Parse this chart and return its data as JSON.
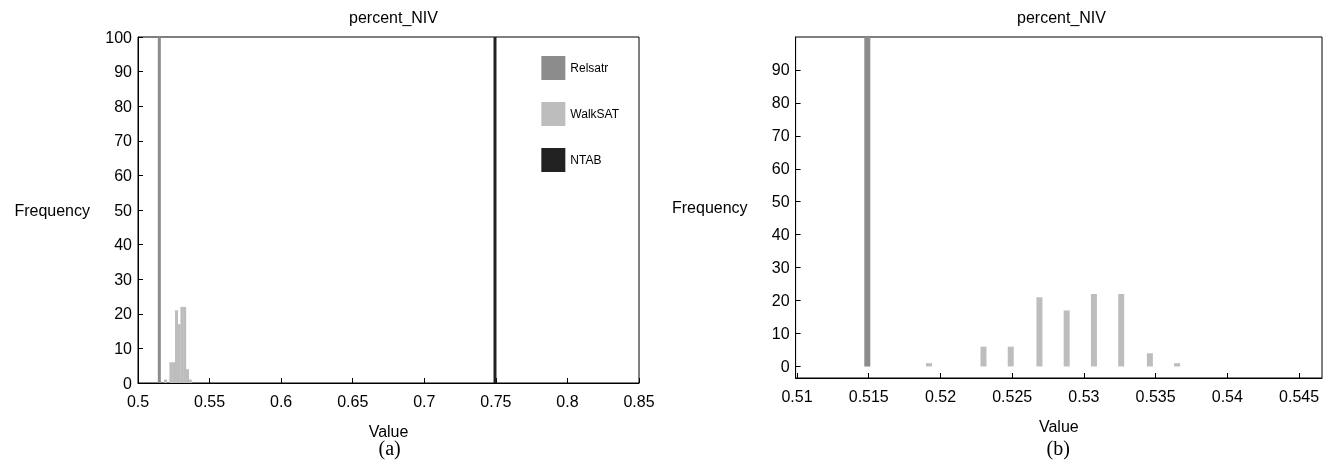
{
  "chart_data": [
    {
      "type": "bar",
      "title": "percent_NIV",
      "xlabel": "Value",
      "ylabel": "Frequency",
      "annotations": [
        "(a)"
      ],
      "xlim": [
        0.5,
        0.85
      ],
      "xticks": [
        0.5,
        0.55,
        0.6,
        0.65,
        0.7,
        0.75,
        0.8,
        0.85
      ],
      "ylim": [
        0,
        100
      ],
      "yticks": [
        0,
        10,
        20,
        30,
        40,
        50,
        60,
        70,
        80,
        90,
        100
      ],
      "grid": false,
      "legend": "top right",
      "series": [
        {
          "name": "Relsatr",
          "color": "#8c8c8c",
          "x": [
            0.5149
          ],
          "values": [
            100
          ]
        },
        {
          "name": "WalkSAT",
          "color": "#bdbdbd",
          "x": [
            0.5192,
            0.523,
            0.5249,
            0.5269,
            0.5288,
            0.5307,
            0.5326,
            0.5346,
            0.5365
          ],
          "values": [
            1,
            6,
            6,
            21,
            17,
            22,
            22,
            4,
            1
          ]
        },
        {
          "name": "NTAB",
          "color": "#222222",
          "x": [
            0.7494
          ],
          "values": [
            100
          ]
        }
      ]
    },
    {
      "type": "bar",
      "title": "percent_NIV",
      "xlabel": "Value",
      "ylabel": "Frequency",
      "annotations": [
        "(b)"
      ],
      "xlim": [
        0.5099,
        0.5466
      ],
      "xticks": [
        0.51,
        0.515,
        0.52,
        0.525,
        0.53,
        0.535,
        0.54,
        0.545
      ],
      "ylim": [
        -3.5,
        100
      ],
      "yticks": [
        0,
        10,
        20,
        30,
        40,
        50,
        60,
        70,
        80,
        90
      ],
      "grid": false,
      "series": [
        {
          "color": "#8c8c8c",
          "x": [
            0.5149,
            0.5168,
            0.5187,
            0.5206,
            0.5225,
            0.5245,
            0.5264,
            0.5283,
            0.5302,
            0.5322,
            0.5341,
            0.536,
            0.5379,
            0.5398,
            0.5418,
            0.5437,
            0.5456
          ],
          "values": [
            100,
            0,
            0,
            0,
            0,
            0,
            0,
            0,
            0,
            0,
            0,
            0,
            0,
            0,
            0,
            0,
            0
          ]
        },
        {
          "color": "#bdbdbd",
          "x": [
            0.5153,
            0.5173,
            0.5192,
            0.5211,
            0.523,
            0.5249,
            0.5269,
            0.5288,
            0.5307,
            0.5326,
            0.5346,
            0.5365,
            0.5384,
            0.5403,
            0.5422,
            0.5442,
            0.5461
          ],
          "values": [
            0,
            0,
            1,
            0,
            6,
            6,
            21,
            17,
            22,
            22,
            4,
            1,
            0,
            0,
            0,
            0,
            0
          ]
        }
      ]
    }
  ]
}
